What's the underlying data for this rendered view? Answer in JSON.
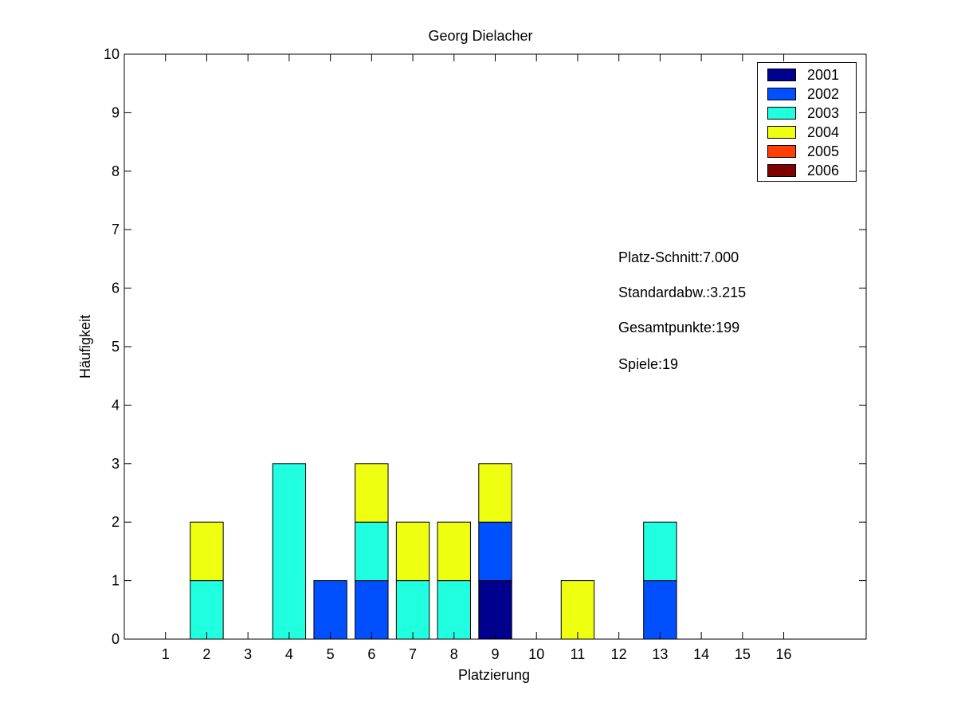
{
  "chart_data": {
    "type": "bar",
    "stacked": true,
    "title": "Georg Dielacher",
    "xlabel": "Platzierung",
    "ylabel": "Häufigkeit",
    "categories": [
      "1",
      "2",
      "3",
      "4",
      "5",
      "6",
      "7",
      "8",
      "9",
      "10",
      "11",
      "12",
      "13",
      "14",
      "15",
      "16"
    ],
    "ylim": [
      0,
      10
    ],
    "yticks": [
      0,
      1,
      2,
      3,
      4,
      5,
      6,
      7,
      8,
      9,
      10
    ],
    "xlim": [
      0,
      18
    ],
    "grid": false,
    "legend_position": "top-right",
    "series": [
      {
        "name": "2001",
        "color": "#00008f",
        "values": [
          0,
          0,
          0,
          0,
          0,
          0,
          0,
          0,
          1,
          0,
          0,
          0,
          0,
          0,
          0,
          0
        ]
      },
      {
        "name": "2002",
        "color": "#0050ff",
        "values": [
          0,
          0,
          0,
          0,
          1,
          1,
          0,
          0,
          1,
          0,
          0,
          0,
          1,
          0,
          0,
          0
        ]
      },
      {
        "name": "2003",
        "color": "#20ffdf",
        "values": [
          0,
          1,
          0,
          3,
          0,
          1,
          1,
          1,
          0,
          0,
          0,
          0,
          1,
          0,
          0,
          0
        ]
      },
      {
        "name": "2004",
        "color": "#efff10",
        "values": [
          0,
          1,
          0,
          0,
          0,
          1,
          1,
          1,
          1,
          0,
          1,
          0,
          0,
          0,
          0,
          0
        ]
      },
      {
        "name": "2005",
        "color": "#ff4000",
        "values": [
          0,
          0,
          0,
          0,
          0,
          0,
          0,
          0,
          0,
          0,
          0,
          0,
          0,
          0,
          0,
          0
        ]
      },
      {
        "name": "2006",
        "color": "#800000",
        "values": [
          0,
          0,
          0,
          0,
          0,
          0,
          0,
          0,
          0,
          0,
          0,
          0,
          0,
          0,
          0,
          0
        ]
      }
    ],
    "annotations": [
      "Platz-Schnitt:7.000",
      "Standardabw.:3.215",
      "Gesamtpunkte:199",
      "Spiele:19"
    ]
  }
}
